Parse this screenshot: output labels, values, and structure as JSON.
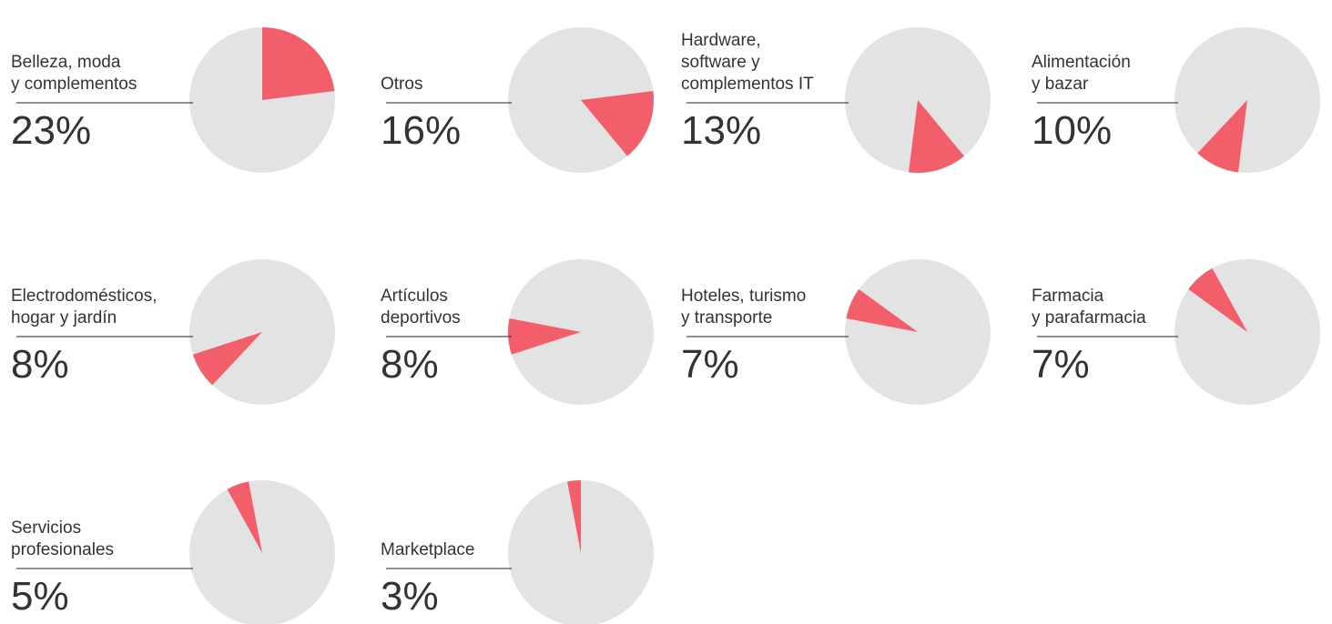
{
  "chart_data": {
    "type": "pie",
    "categories": [
      "Belleza, moda\ny complementos",
      "Otros",
      "Hardware,\nsoftware y\ncomplementos  IT",
      "Alimentación\ny bazar",
      "Electrodomésticos,\nhogar y jardín",
      "Artículos\ndeportivos",
      "Hoteles, turismo\ny transporte",
      "Farmacia\ny parafarmacia",
      "Servicios\nprofesionales",
      "Marketplace"
    ],
    "values": [
      23,
      16,
      13,
      10,
      8,
      8,
      7,
      7,
      5,
      3
    ],
    "value_labels": [
      "23%",
      "16%",
      "13%",
      "10%",
      "8%",
      "8%",
      "7%",
      "7%",
      "5%",
      "3%"
    ],
    "color": "#f25f6b"
  }
}
